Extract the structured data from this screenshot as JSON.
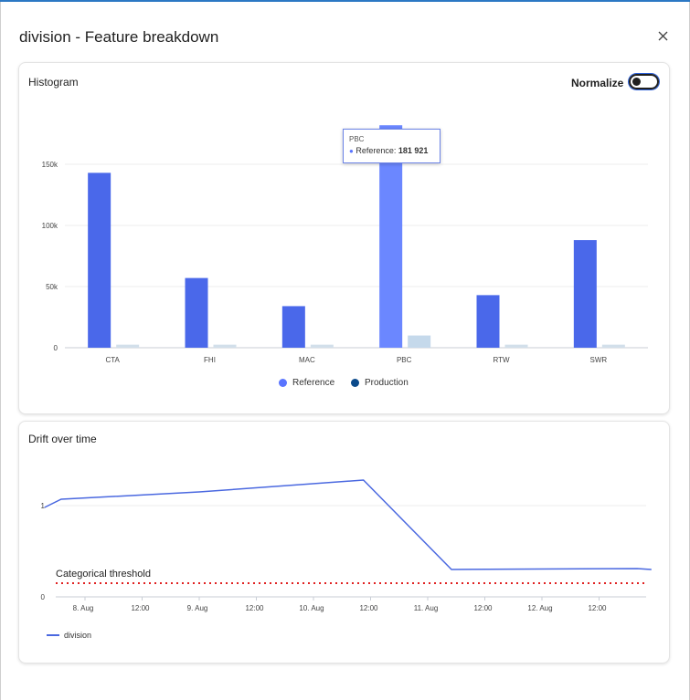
{
  "dialog": {
    "title": "division - Feature breakdown",
    "close_icon": "close-icon"
  },
  "histogram_card": {
    "title": "Histogram",
    "normalize_label": "Normalize",
    "normalize_on": false,
    "tooltip": {
      "category": "PBC",
      "series": "Reference:",
      "value": "181 921"
    },
    "legend": [
      {
        "name": "Reference",
        "color": "#5a75ff"
      },
      {
        "name": "Production",
        "color": "#0b4a8b"
      }
    ]
  },
  "drift_card": {
    "title": "Drift over time",
    "threshold_label": "Categorical threshold",
    "legend_label": "division"
  },
  "chart_data": [
    {
      "type": "bar",
      "categories": [
        "CTA",
        "FHI",
        "MAC",
        "PBC",
        "RTW",
        "SWR"
      ],
      "series": [
        {
          "name": "Reference",
          "values": [
            143000,
            57000,
            34000,
            181921,
            43000,
            88000
          ],
          "color": "#4a68ea"
        },
        {
          "name": "Production",
          "values": [
            2500,
            2500,
            2500,
            10000,
            2500,
            2500
          ],
          "color": "#cfdce8"
        }
      ],
      "ylim": [
        0,
        185000
      ],
      "yticks": [
        0,
        50000,
        100000,
        150000
      ],
      "ytick_labels": [
        "0",
        "50k",
        "100k",
        "150k"
      ],
      "highlighted_category": "PBC",
      "grid": true
    },
    {
      "type": "line",
      "x_tick_labels": [
        "8. Aug",
        "12:00",
        "9. Aug",
        "12:00",
        "10. Aug",
        "12:00",
        "11. Aug",
        "12:00",
        "12. Aug",
        "12:00"
      ],
      "x_hours": [
        0,
        12,
        24,
        36,
        48,
        60,
        72,
        84,
        96,
        108
      ],
      "series": [
        {
          "name": "division",
          "x": [
            -8.5,
            -5,
            24,
            58.5,
            77,
            116,
            119
          ],
          "y": [
            0.98,
            1.07,
            1.15,
            1.28,
            0.3,
            0.31,
            0.3
          ],
          "color": "#4a68e0"
        }
      ],
      "threshold": {
        "value": 0.2,
        "label": "Categorical threshold",
        "color": "#e02020"
      },
      "yticks": [
        0,
        1
      ],
      "ylim": [
        0,
        1.55
      ],
      "grid": true
    }
  ]
}
